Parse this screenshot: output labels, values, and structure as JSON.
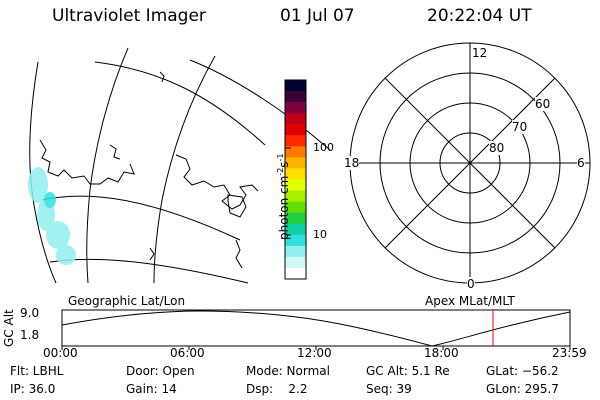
{
  "header": {
    "instrument": "Ultraviolet Imager",
    "date": "01 Jul 07",
    "time": "20:22:04 UT"
  },
  "colorbar": {
    "unit_label": "photon cm",
    "unit_sup1": "-2",
    "unit_s": "s",
    "unit_sup2": "-1",
    "tick_100": "100",
    "tick_10": "10",
    "colors": [
      "#000033",
      "#3a003a",
      "#800040",
      "#c00018",
      "#e00000",
      "#ff2a00",
      "#ff7800",
      "#ffb400",
      "#ffe000",
      "#e0ff00",
      "#a8f000",
      "#60e000",
      "#20d040",
      "#10d0a0",
      "#30e0e0",
      "#90f0f0",
      "#d0f8f8",
      "#ffffff"
    ]
  },
  "polar": {
    "label_12": "12",
    "label_18": "18",
    "label_6": "6",
    "label_0": "0",
    "label_60": "60",
    "label_70": "70",
    "label_80": "80"
  },
  "panel_labels": {
    "geographic": "Geographic Lat/Lon",
    "apex": "Apex MLat/MLT"
  },
  "altitude_plot": {
    "ylabel": "GC Alt",
    "ytick_top": "9.0",
    "ytick_bottom": "1.8",
    "xticks": [
      "00:00",
      "06:00",
      "12:00",
      "18:00",
      "23:59"
    ],
    "current_time_marker_color": "#ff0000"
  },
  "footer": {
    "flt": "Flt: LBHL",
    "door": "Door: Open",
    "mode": "Mode: Normal",
    "gc_alt": "GC Alt: 5.1 Re",
    "glat": "GLat: −56.2",
    "ip": "IP: 36.0",
    "gain": "Gain: 14",
    "dsp": "Dsp:    2.2",
    "seq": "Seq: 39",
    "glon": "GLon: 295.7"
  }
}
